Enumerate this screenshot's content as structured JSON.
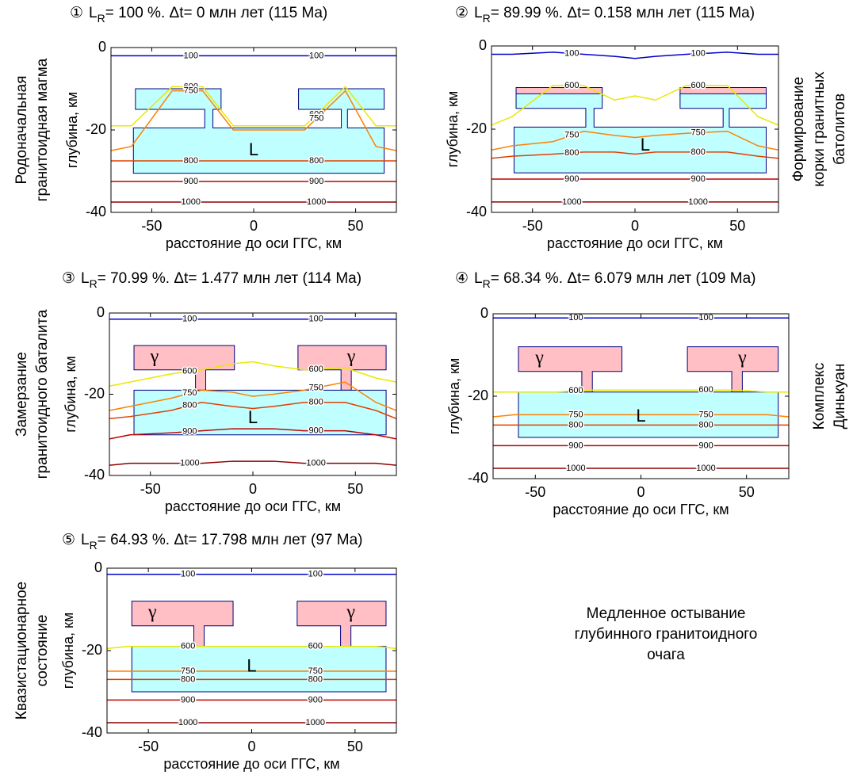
{
  "chart_data": [
    {
      "type": "contour",
      "number": "①",
      "title_main": "L",
      "title_sub": "R",
      "title_rest": "= 100 %. Δt= 0 млн лет (115 Ma)",
      "xlabel": "расстояние до оси ГГС, км",
      "ylabel": "глубина, км",
      "side": "left",
      "side_label": [
        "Родоначальная",
        "гранитоидная магма"
      ],
      "xlim": [
        -70,
        70
      ],
      "ylim": [
        -40,
        0
      ],
      "xticks": [
        -50,
        0,
        50
      ],
      "yticks": [
        0,
        -20,
        -40
      ],
      "x": [
        -70,
        -60,
        -40,
        -25,
        -10,
        0,
        10,
        25,
        45,
        60,
        70
      ],
      "series": [
        {
          "name": "100",
          "color": "#0000cc",
          "values": [
            -2,
            -2,
            -2,
            -2,
            -2,
            -2,
            -2,
            -2,
            -2,
            -2,
            -2
          ]
        },
        {
          "name": "600",
          "color": "#e8e800",
          "values": [
            -19,
            -19,
            -9.5,
            -9.5,
            -19,
            -19,
            -19,
            -19,
            -9.5,
            -19,
            -19
          ]
        },
        {
          "name": "750",
          "color": "#ff8000",
          "values": [
            -25,
            -24,
            -10.5,
            -10.5,
            -20,
            -20,
            -20,
            -20,
            -10.5,
            -24,
            -25
          ]
        },
        {
          "name": "800",
          "color": "#e04000",
          "values": [
            -27.5,
            -27.5,
            -27.5,
            -27.5,
            -27.5,
            -27.5,
            -27.5,
            -27.5,
            -27.5,
            -27.5,
            -27.5
          ]
        },
        {
          "name": "900",
          "color": "#c00000",
          "values": [
            -32.5,
            -32.5,
            -32.5,
            -32.5,
            -32.5,
            -32.5,
            -32.5,
            -32.5,
            -32.5,
            -32.5,
            -32.5
          ]
        },
        {
          "name": "1000",
          "color": "#8b0000",
          "values": [
            -37.5,
            -37.5,
            -37.5,
            -37.5,
            -37.5,
            -37.5,
            -37.5,
            -37.5,
            -37.5,
            -37.5,
            -37.5
          ]
        }
      ],
      "regions": [
        {
          "color": "#bfffff",
          "x": [
            -59,
            -24,
            -24,
            -58,
            -58,
            -16,
            -16,
            -20,
            -20,
            43,
            43,
            22,
            22,
            64,
            64,
            46,
            46,
            64,
            64,
            -59
          ],
          "y": [
            -19.5,
            -19.5,
            -15,
            -15,
            -10,
            -10,
            -15,
            -15,
            -19.5,
            -19.5,
            -15,
            -15,
            -10,
            -10,
            -15,
            -15,
            -19.5,
            -19.5,
            -30.5,
            -30.5
          ]
        }
      ],
      "region_labels": [
        {
          "text": "L",
          "x": 0,
          "y": -25
        }
      ]
    },
    {
      "type": "contour",
      "number": "②",
      "title_main": "L",
      "title_sub": "R",
      "title_rest": "= 89.99 %. Δt= 0.158 млн лет (115 Ma)",
      "xlabel": "расстояние до оси ГГС, км",
      "ylabel": "глубина, км",
      "side": "right",
      "side_label": [
        "Формирование",
        "корки гранитных",
        "батолитов"
      ],
      "xlim": [
        -70,
        70
      ],
      "ylim": [
        -40,
        0
      ],
      "xticks": [
        -50,
        0,
        50
      ],
      "yticks": [
        0,
        -20,
        -40
      ],
      "x": [
        -70,
        -60,
        -40,
        -25,
        -10,
        0,
        10,
        25,
        45,
        60,
        70
      ],
      "series": [
        {
          "name": "100",
          "color": "#0000cc",
          "values": [
            -2,
            -2,
            -1.5,
            -2,
            -2.5,
            -3,
            -2.5,
            -2,
            -1.5,
            -2,
            -2
          ]
        },
        {
          "name": "600",
          "color": "#e8e800",
          "values": [
            -19,
            -17,
            -9.5,
            -9.5,
            -13,
            -12,
            -13,
            -9.5,
            -9.5,
            -17,
            -19
          ]
        },
        {
          "name": "750",
          "color": "#ff8000",
          "values": [
            -25,
            -24,
            -23,
            -20.5,
            -21.5,
            -22,
            -21.5,
            -21,
            -20.5,
            -24,
            -25
          ]
        },
        {
          "name": "800",
          "color": "#e04000",
          "values": [
            -27,
            -26.5,
            -26,
            -25.5,
            -25.5,
            -26,
            -25.5,
            -25.5,
            -25.5,
            -26.5,
            -27
          ]
        },
        {
          "name": "900",
          "color": "#c00000",
          "values": [
            -32,
            -32,
            -32,
            -32,
            -32,
            -32,
            -32,
            -32,
            -32,
            -32,
            -32
          ]
        },
        {
          "name": "1000",
          "color": "#8b0000",
          "values": [
            -37.5,
            -37.5,
            -37.5,
            -37.5,
            -37.5,
            -37.5,
            -37.5,
            -37.5,
            -37.5,
            -37.5,
            -37.5
          ]
        }
      ],
      "regions": [
        {
          "color": "#ffbfc4",
          "x": [
            -58,
            -16,
            -16,
            -58
          ],
          "y": [
            -10,
            -10,
            -12,
            -12
          ]
        },
        {
          "color": "#ffbfc4",
          "x": [
            22,
            64,
            64,
            22
          ],
          "y": [
            -10,
            -10,
            -12,
            -12
          ]
        },
        {
          "color": "#bfffff",
          "x": [
            -59,
            -24,
            -24,
            -58,
            -58,
            -16,
            -16,
            -20,
            -20,
            43,
            43,
            22,
            22,
            64,
            64,
            46,
            46,
            64,
            64,
            -59
          ],
          "y": [
            -19.5,
            -19.5,
            -15,
            -15,
            -11.5,
            -11.5,
            -15,
            -15,
            -19.5,
            -19.5,
            -15,
            -15,
            -11.5,
            -11.5,
            -15,
            -15,
            -19.5,
            -19.5,
            -30.5,
            -30.5
          ]
        }
      ],
      "region_labels": [
        {
          "text": "L",
          "x": 5,
          "y": -24
        }
      ]
    },
    {
      "type": "contour",
      "number": "③",
      "title_main": "L",
      "title_sub": "R",
      "title_rest": "= 70.99 %. Δt= 1.477 млн лет (114 Ma)",
      "xlabel": "расстояние до оси ГГС, км",
      "ylabel": "глубина, км",
      "side": "left",
      "side_label": [
        "Замерзание",
        "гранитоидного баталита"
      ],
      "xlim": [
        -70,
        70
      ],
      "ylim": [
        -40,
        0
      ],
      "xticks": [
        -50,
        0,
        50
      ],
      "yticks": [
        0,
        -20,
        -40
      ],
      "x": [
        -70,
        -60,
        -40,
        -25,
        -10,
        0,
        10,
        25,
        45,
        60,
        70
      ],
      "series": [
        {
          "name": "100",
          "color": "#0000cc",
          "values": [
            -1.5,
            -1.5,
            -1.5,
            -1.5,
            -1.5,
            -1.5,
            -1.5,
            -1.5,
            -1.5,
            -1.5,
            -1.5
          ]
        },
        {
          "name": "600",
          "color": "#e8e800",
          "values": [
            -18,
            -17,
            -15,
            -14,
            -12.5,
            -12,
            -13,
            -14,
            -13.5,
            -16,
            -17
          ]
        },
        {
          "name": "750",
          "color": "#ff8000",
          "values": [
            -24,
            -23,
            -21,
            -19,
            -19.5,
            -20.5,
            -20,
            -19,
            -17,
            -22,
            -24
          ]
        },
        {
          "name": "800",
          "color": "#e04000",
          "values": [
            -26,
            -25.5,
            -24,
            -22,
            -23,
            -23.5,
            -23,
            -22,
            -22,
            -24,
            -26
          ]
        },
        {
          "name": "900",
          "color": "#c00000",
          "values": [
            -31,
            -30,
            -29.5,
            -29,
            -28.5,
            -28.5,
            -28.5,
            -29,
            -29,
            -30,
            -31
          ]
        },
        {
          "name": "1000",
          "color": "#8b0000",
          "values": [
            -37.5,
            -37,
            -37,
            -37,
            -36.5,
            -36.5,
            -36.5,
            -37,
            -37,
            -37,
            -37.5
          ]
        }
      ],
      "regions": [
        {
          "color": "#ffbfc4",
          "x": [
            -58,
            -9,
            -9,
            -23,
            -23,
            -28,
            -28,
            -58
          ],
          "y": [
            -8,
            -8,
            -14,
            -14,
            -19,
            -19,
            -14,
            -14
          ]
        },
        {
          "color": "#ffbfc4",
          "x": [
            22,
            65,
            65,
            48,
            48,
            43,
            43,
            22
          ],
          "y": [
            -8,
            -8,
            -14,
            -14,
            -19,
            -19,
            -14,
            -14
          ]
        },
        {
          "color": "#bfffff",
          "x": [
            -58,
            65,
            65,
            -58
          ],
          "y": [
            -19,
            -19,
            -30,
            -30
          ]
        }
      ],
      "region_labels": [
        {
          "text": "γ",
          "x": -48,
          "y": -11
        },
        {
          "text": "γ",
          "x": 48,
          "y": -11
        },
        {
          "text": "L",
          "x": 0,
          "y": -26
        }
      ]
    },
    {
      "type": "contour",
      "number": "④",
      "title_main": "L",
      "title_sub": "R",
      "title_rest": "= 68.34 %. Δt= 6.079 млн лет (109 Ma)",
      "xlabel": "расстояние до оси ГГС, км",
      "ylabel": "глубина, км",
      "side": "right",
      "side_label": [
        "Комплекс",
        "Динькуан"
      ],
      "xlim": [
        -70,
        70
      ],
      "ylim": [
        -40,
        0
      ],
      "xticks": [
        -50,
        0,
        50
      ],
      "yticks": [
        0,
        -20,
        -40
      ],
      "x": [
        -70,
        -60,
        -40,
        -25,
        -10,
        0,
        10,
        25,
        45,
        60,
        70
      ],
      "series": [
        {
          "name": "100",
          "color": "#0000cc",
          "values": [
            -1,
            -1,
            -1,
            -1,
            -1,
            -1,
            -1,
            -1,
            -1,
            -1,
            -1
          ]
        },
        {
          "name": "600",
          "color": "#e8e800",
          "values": [
            -19,
            -19,
            -19,
            -18.5,
            -18.5,
            -18.5,
            -18.5,
            -18.5,
            -18.5,
            -19,
            -19
          ]
        },
        {
          "name": "750",
          "color": "#ff8000",
          "values": [
            -25,
            -24.5,
            -24.5,
            -24.5,
            -24.5,
            -24.5,
            -24.5,
            -24.5,
            -24.5,
            -24.5,
            -25
          ]
        },
        {
          "name": "800",
          "color": "#e04000",
          "values": [
            -27,
            -27,
            -27,
            -27,
            -27,
            -27,
            -27,
            -27,
            -27,
            -27,
            -27
          ]
        },
        {
          "name": "900",
          "color": "#c00000",
          "values": [
            -32,
            -32,
            -32,
            -32,
            -32,
            -32,
            -32,
            -32,
            -32,
            -32,
            -32
          ]
        },
        {
          "name": "1000",
          "color": "#8b0000",
          "values": [
            -37.5,
            -37.5,
            -37.5,
            -37.5,
            -37.5,
            -37.5,
            -37.5,
            -37.5,
            -37.5,
            -37.5,
            -37.5
          ]
        }
      ],
      "regions": [
        {
          "color": "#ffbfc4",
          "x": [
            -58,
            -9,
            -9,
            -23,
            -23,
            -28,
            -28,
            -58
          ],
          "y": [
            -8,
            -8,
            -14,
            -14,
            -19,
            -19,
            -14,
            -14
          ]
        },
        {
          "color": "#ffbfc4",
          "x": [
            22,
            65,
            65,
            48,
            48,
            43,
            43,
            22
          ],
          "y": [
            -8,
            -8,
            -14,
            -14,
            -19,
            -19,
            -14,
            -14
          ]
        },
        {
          "color": "#bfffff",
          "x": [
            -58,
            65,
            65,
            -58
          ],
          "y": [
            -19,
            -19,
            -30,
            -30
          ]
        }
      ],
      "region_labels": [
        {
          "text": "γ",
          "x": -48,
          "y": -11
        },
        {
          "text": "γ",
          "x": 48,
          "y": -11
        },
        {
          "text": "L",
          "x": 0,
          "y": -25
        }
      ]
    },
    {
      "type": "contour",
      "number": "⑤",
      "title_main": "L",
      "title_sub": "R",
      "title_rest": "= 64.93 %. Δt= 17.798 млн лет (97 Ma)",
      "xlabel": "расстояние до оси ГГС, км",
      "ylabel": "глубина, км",
      "side": "left",
      "side_label": [
        "Квазистационарное",
        "состояние"
      ],
      "xlim": [
        -70,
        70
      ],
      "ylim": [
        -40,
        0
      ],
      "xticks": [
        -50,
        0,
        50
      ],
      "yticks": [
        0,
        -20,
        -40
      ],
      "x": [
        -70,
        -60,
        -40,
        -25,
        -10,
        0,
        10,
        25,
        45,
        60,
        70
      ],
      "series": [
        {
          "name": "100",
          "color": "#0000cc",
          "values": [
            -1.5,
            -1.5,
            -1.5,
            -1.5,
            -1.5,
            -1.5,
            -1.5,
            -1.5,
            -1.5,
            -1.5,
            -1.5
          ]
        },
        {
          "name": "600",
          "color": "#e8e800",
          "values": [
            -19.5,
            -19,
            -19,
            -19,
            -19,
            -19,
            -19,
            -19,
            -19,
            -19,
            -19.5
          ]
        },
        {
          "name": "750",
          "color": "#ff8000",
          "values": [
            -25,
            -25,
            -25,
            -25,
            -25,
            -25,
            -25,
            -25,
            -25,
            -25,
            -25
          ]
        },
        {
          "name": "800",
          "color": "#e04000",
          "values": [
            -27,
            -27,
            -27,
            -27,
            -27,
            -27,
            -27,
            -27,
            -27,
            -27,
            -27
          ]
        },
        {
          "name": "900",
          "color": "#c00000",
          "values": [
            -32,
            -32,
            -32,
            -32,
            -32,
            -32,
            -32,
            -32,
            -32,
            -32,
            -32
          ]
        },
        {
          "name": "1000",
          "color": "#8b0000",
          "values": [
            -37.5,
            -37.5,
            -37.5,
            -37.5,
            -37.5,
            -37.5,
            -37.5,
            -37.5,
            -37.5,
            -37.5,
            -37.5
          ]
        }
      ],
      "regions": [
        {
          "color": "#ffbfc4",
          "x": [
            -58,
            -9,
            -9,
            -23,
            -23,
            -28,
            -28,
            -58
          ],
          "y": [
            -8,
            -8,
            -14,
            -14,
            -19,
            -19,
            -14,
            -14
          ]
        },
        {
          "color": "#ffbfc4",
          "x": [
            22,
            65,
            65,
            48,
            48,
            43,
            43,
            22
          ],
          "y": [
            -8,
            -8,
            -14,
            -14,
            -19,
            -19,
            -14,
            -14
          ]
        },
        {
          "color": "#bfffff",
          "x": [
            -58,
            65,
            65,
            -58
          ],
          "y": [
            -19,
            -19,
            -30,
            -30
          ]
        }
      ],
      "region_labels": [
        {
          "text": "γ",
          "x": -48,
          "y": -11
        },
        {
          "text": "γ",
          "x": 48,
          "y": -11
        },
        {
          "text": "L",
          "x": 0,
          "y": -24
        }
      ]
    }
  ],
  "note": [
    "Медленное остывание",
    "глубинного гранитоидного",
    "очага"
  ]
}
